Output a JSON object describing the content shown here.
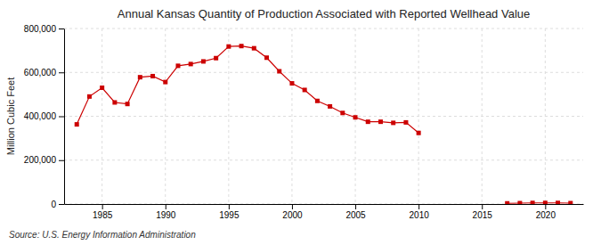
{
  "chart_data": {
    "type": "line",
    "title": "Annual Kansas Quantity of Production Associated with Reported Wellhead Value",
    "ylabel": "Million Cubic Feet",
    "annotations": [
      "Source: U.S. Energy Information Administration"
    ],
    "x": [
      1983,
      1984,
      1985,
      1986,
      1987,
      1988,
      1989,
      1990,
      1991,
      1992,
      1993,
      1994,
      1995,
      1996,
      1997,
      1998,
      1999,
      2000,
      2001,
      2002,
      2003,
      2004,
      2005,
      2006,
      2007,
      2008,
      2009,
      2010,
      null,
      2017,
      2018,
      2019,
      2020,
      2021,
      2022
    ],
    "values": [
      363000,
      490000,
      530000,
      463000,
      456000,
      578000,
      583000,
      556000,
      630000,
      638000,
      650000,
      665000,
      718000,
      720000,
      710000,
      667000,
      605000,
      550000,
      520000,
      470000,
      445000,
      415000,
      395000,
      375000,
      375000,
      370000,
      372000,
      324000,
      null,
      3000,
      4000,
      5000,
      5000,
      5000,
      4000
    ],
    "color": "#cc0000",
    "marker": "square",
    "grid": true,
    "xlim": [
      1982,
      2023
    ],
    "xticks": [
      1985,
      1990,
      1995,
      2000,
      2005,
      2010,
      2015,
      2020
    ],
    "ylim": [
      0,
      800000
    ],
    "yticks": [
      0,
      {
        "value": 200000,
        "label": "200,000"
      },
      {
        "value": 400000,
        "label": "400,000"
      },
      {
        "value": 600000,
        "label": "600,000"
      },
      {
        "value": 800000,
        "label": "800,000"
      }
    ]
  }
}
